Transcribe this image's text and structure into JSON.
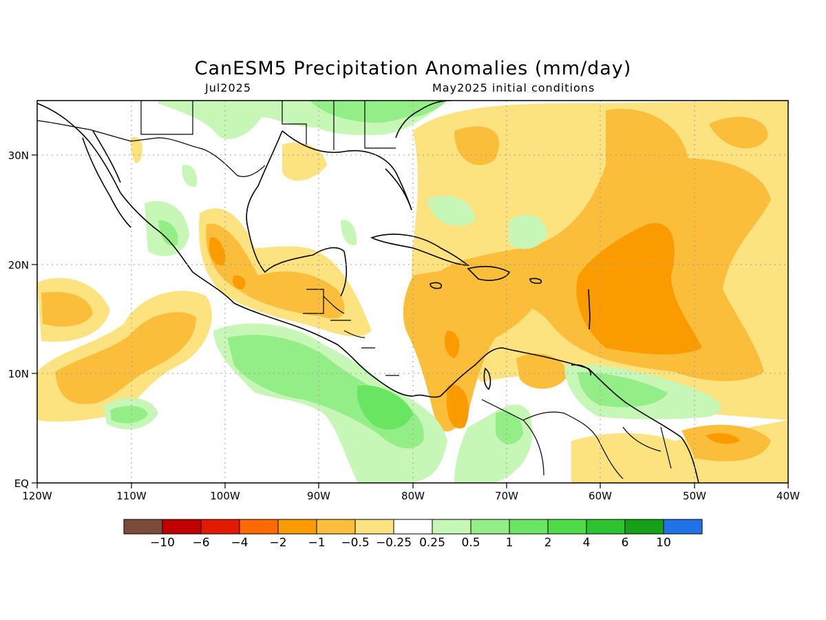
{
  "title": "CanESM5 Precipitation Anomalies (mm/day)",
  "subtitle_left": "Jul2025",
  "subtitle_right": "May2025 initial conditions",
  "lat_labels": [
    "EQ",
    "10N",
    "20N",
    "30N"
  ],
  "lon_labels": [
    "120W",
    "110W",
    "100W",
    "90W",
    "80W",
    "70W",
    "60W",
    "50W",
    "40W"
  ],
  "colorbar": {
    "colors": [
      "#7b4b3a",
      "#c00000",
      "#e21b00",
      "#ff6a00",
      "#fa9c00",
      "#fbbe3b",
      "#fde37f",
      "#ffffff",
      "#c6f7b6",
      "#94ee87",
      "#6ae562",
      "#4ddc47",
      "#2ec42f",
      "#18a018",
      "#1f73e6"
    ],
    "labels": [
      "−10",
      "−6",
      "−4",
      "−2",
      "−1",
      "−0.5",
      "−0.25",
      "0.25",
      "0.5",
      "1",
      "2",
      "4",
      "6",
      "10"
    ]
  }
}
